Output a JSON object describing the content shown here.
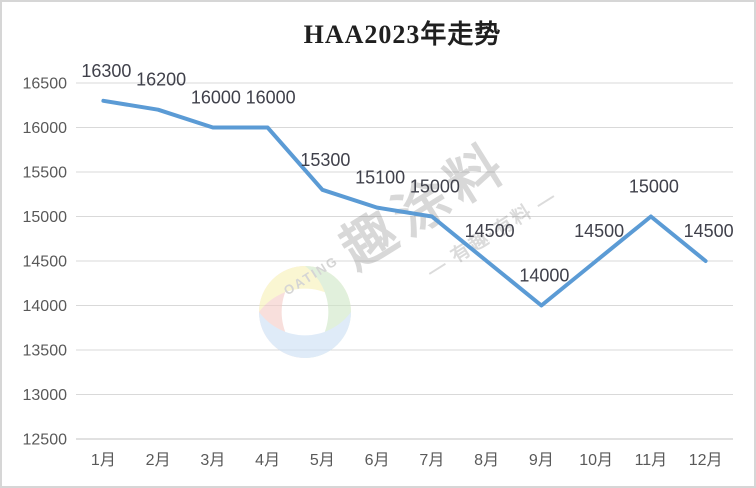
{
  "chart_data": {
    "type": "line",
    "title": "HAA2023年走势",
    "categories": [
      "1月",
      "2月",
      "3月",
      "4月",
      "5月",
      "6月",
      "7月",
      "8月",
      "9月",
      "10月",
      "11月",
      "12月"
    ],
    "values": [
      16300,
      16200,
      16000,
      16000,
      15300,
      15100,
      15000,
      14500,
      14000,
      14500,
      15000,
      14500
    ],
    "xlabel": "",
    "ylabel": "",
    "ylim": [
      12500,
      16500
    ],
    "ytick_step": 500,
    "ytick_labels": [
      "12500",
      "13000",
      "13500",
      "14000",
      "14500",
      "15000",
      "15500",
      "16000",
      "16500"
    ],
    "grid": true,
    "legend": "none",
    "data_labels": true,
    "line_color": "#5B9BD5",
    "gridline_color": "#D9D9D9",
    "axis_line_color": "#C3C3C3",
    "axis_text_color": "#595959",
    "label_text_color": "#40414B"
  },
  "watermark": {
    "brand": "趣涂料",
    "tagline": "— 有趣·有料 —",
    "logo_text": "OATING",
    "logo_colors": {
      "red": "#F4CDC8",
      "yellow": "#F8F1B8",
      "green": "#CFE7C7",
      "blue": "#CCE0F5"
    }
  }
}
